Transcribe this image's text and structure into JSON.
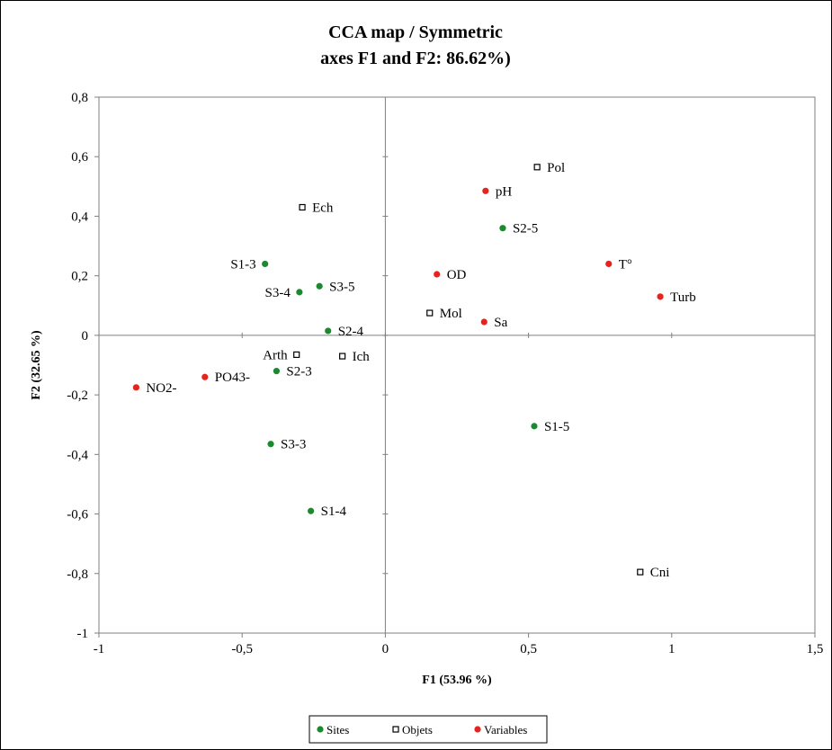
{
  "chart_data": {
    "type": "scatter",
    "title": [
      "CCA map / Symmetric",
      "axes F1 and F2: 86.62%)"
    ],
    "xlabel": "F1 (53.96 %)",
    "ylabel": "F2 (32.65 %)",
    "xlim": [
      -1,
      1.5
    ],
    "ylim": [
      -1,
      0.8
    ],
    "xticks": [
      -1,
      -0.5,
      0,
      0.5,
      1,
      1.5
    ],
    "xtick_labels": [
      "-1",
      "-0,5",
      "0",
      "0,5",
      "1",
      "1,5"
    ],
    "yticks": [
      -1,
      -0.8,
      -0.6,
      -0.4,
      -0.2,
      0,
      0.2,
      0.4,
      0.6,
      0.8
    ],
    "ytick_labels": [
      "-1",
      "-0,8",
      "-0,6",
      "-0,4",
      "-0,2",
      "0",
      "0,2",
      "0,4",
      "0,6",
      "0,8"
    ],
    "grid": false,
    "legend_position": "bottom",
    "series": [
      {
        "name": "Sites",
        "marker": "filled-circle",
        "color": "#1a8a2e",
        "points": [
          {
            "label": "S1-3",
            "x": -0.42,
            "y": 0.24
          },
          {
            "label": "S3-4",
            "x": -0.3,
            "y": 0.145
          },
          {
            "label": "S3-5",
            "x": -0.23,
            "y": 0.165
          },
          {
            "label": "S2-4",
            "x": -0.2,
            "y": 0.015
          },
          {
            "label": "S2-3",
            "x": -0.38,
            "y": -0.12
          },
          {
            "label": "S3-3",
            "x": -0.4,
            "y": -0.365
          },
          {
            "label": "S1-4",
            "x": -0.26,
            "y": -0.59
          },
          {
            "label": "S2-5",
            "x": 0.41,
            "y": 0.36
          },
          {
            "label": "S1-5",
            "x": 0.52,
            "y": -0.305
          }
        ]
      },
      {
        "name": "Objets",
        "marker": "open-square",
        "color": "#000000",
        "points": [
          {
            "label": "Ech",
            "x": -0.29,
            "y": 0.43
          },
          {
            "label": "Arth",
            "x": -0.31,
            "y": -0.065
          },
          {
            "label": "Ich",
            "x": -0.15,
            "y": -0.07
          },
          {
            "label": "Pol",
            "x": 0.53,
            "y": 0.565
          },
          {
            "label": "Mol",
            "x": 0.155,
            "y": 0.075
          },
          {
            "label": "Cni",
            "x": 0.89,
            "y": -0.795
          }
        ]
      },
      {
        "name": "Variables",
        "marker": "filled-circle",
        "color": "#e8221c",
        "points": [
          {
            "label": "NO2-",
            "x": -0.87,
            "y": -0.175
          },
          {
            "label": "PO43-",
            "x": -0.63,
            "y": -0.14
          },
          {
            "label": "pH",
            "x": 0.35,
            "y": 0.485
          },
          {
            "label": "OD",
            "x": 0.18,
            "y": 0.205
          },
          {
            "label": "Sa",
            "x": 0.345,
            "y": 0.045
          },
          {
            "label": "T°",
            "x": 0.78,
            "y": 0.24
          },
          {
            "label": "Turb",
            "x": 0.96,
            "y": 0.13
          }
        ]
      }
    ]
  }
}
